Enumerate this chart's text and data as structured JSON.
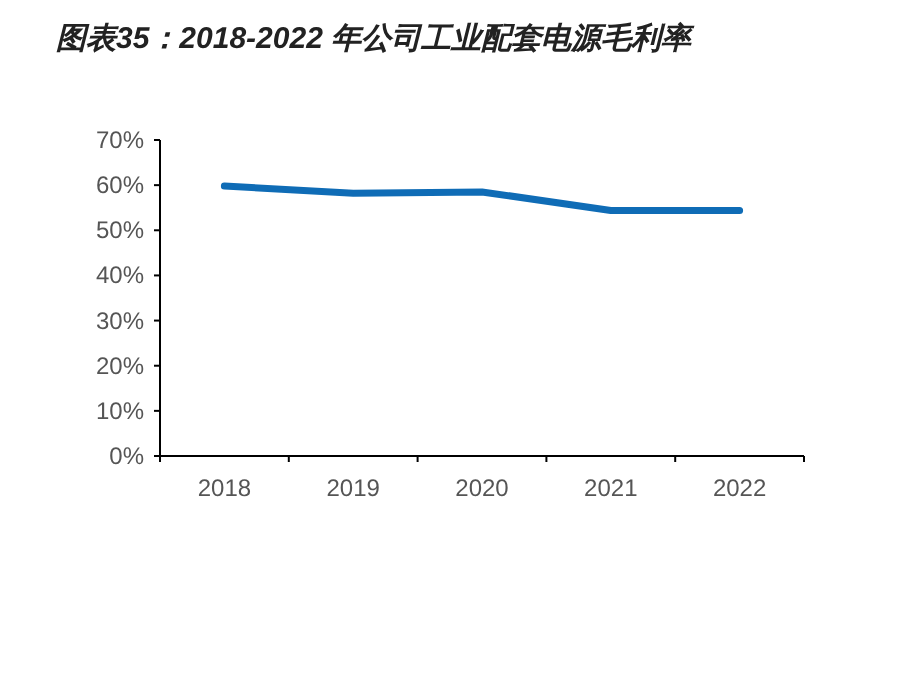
{
  "chart_data": {
    "type": "line",
    "title": "图表35：2018-2022 年公司工业配套电源毛利率",
    "categories": [
      "2018",
      "2019",
      "2020",
      "2021",
      "2022"
    ],
    "series": [
      {
        "color": "#0f6cb6",
        "values": [
          59.8,
          58.2,
          58.5,
          54.4,
          54.4
        ]
      }
    ],
    "ylim": [
      0,
      70
    ],
    "yticks": [
      {
        "value": 0,
        "label": "0%"
      },
      {
        "value": 10,
        "label": "10%"
      },
      {
        "value": 20,
        "label": "20%"
      },
      {
        "value": 30,
        "label": "30%"
      },
      {
        "value": 40,
        "label": "40%"
      },
      {
        "value": 50,
        "label": "50%"
      },
      {
        "value": 60,
        "label": "60%"
      },
      {
        "value": 70,
        "label": "70%"
      }
    ],
    "marker": "none",
    "line_style": "solid"
  }
}
